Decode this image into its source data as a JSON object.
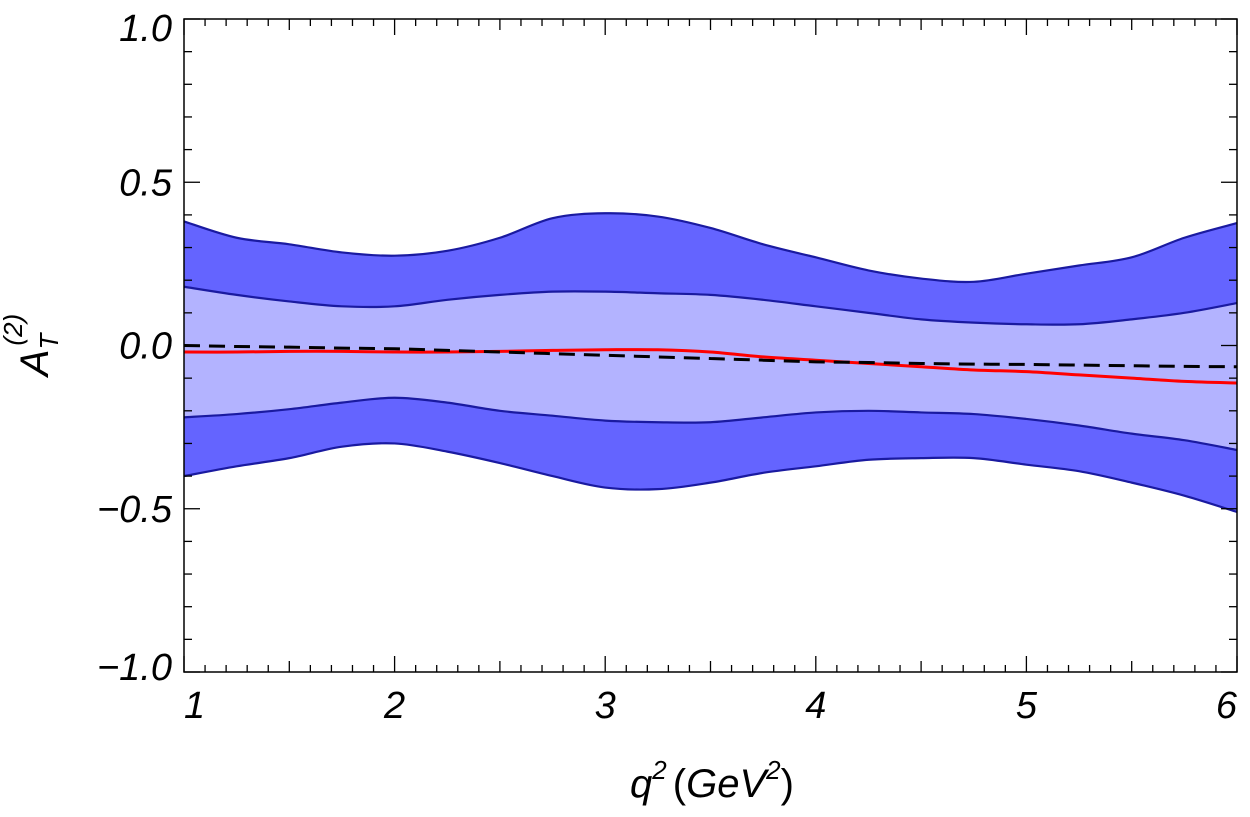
{
  "chart_data": {
    "type": "area",
    "title": "",
    "xlabel": {
      "base": "q",
      "sup": "2",
      "unit_open": "(",
      "unit_base": "GeV",
      "unit_sup": "2",
      "unit_close": ")"
    },
    "ylabel": {
      "base": "A",
      "sub": "T",
      "sup": "(2)"
    },
    "xlim": [
      1,
      6
    ],
    "ylim": [
      -1.0,
      1.0
    ],
    "xticks": [
      1,
      2,
      3,
      4,
      5,
      6
    ],
    "xtick_labels": [
      "1",
      "2",
      "3",
      "4",
      "5",
      "6"
    ],
    "yticks": [
      1.0,
      0.5,
      0.0,
      -0.5,
      -1.0
    ],
    "ytick_labels": [
      "1.0",
      "0.5",
      "0.0",
      "−0.5",
      "−1.0"
    ],
    "grid": false,
    "x": [
      1.0,
      1.25,
      1.5,
      1.75,
      2.0,
      2.25,
      2.5,
      2.75,
      3.0,
      3.25,
      3.5,
      3.75,
      4.0,
      4.25,
      4.5,
      4.75,
      5.0,
      5.25,
      5.5,
      5.75,
      6.0
    ],
    "series": [
      {
        "name": "outer band",
        "kind": "band",
        "color": "#6464ff",
        "edge_color": "#1a1aa0",
        "upper": [
          0.38,
          0.33,
          0.31,
          0.285,
          0.275,
          0.29,
          0.33,
          0.39,
          0.405,
          0.395,
          0.36,
          0.31,
          0.27,
          0.23,
          0.205,
          0.195,
          0.22,
          0.245,
          0.27,
          0.33,
          0.375
        ],
        "lower": [
          -0.4,
          -0.37,
          -0.345,
          -0.31,
          -0.3,
          -0.325,
          -0.36,
          -0.4,
          -0.435,
          -0.44,
          -0.42,
          -0.39,
          -0.37,
          -0.35,
          -0.345,
          -0.345,
          -0.365,
          -0.385,
          -0.42,
          -0.46,
          -0.51
        ]
      },
      {
        "name": "inner band",
        "kind": "band",
        "color": "#b3b3ff",
        "edge_color": "#1a1aa0",
        "upper": [
          0.18,
          0.155,
          0.135,
          0.12,
          0.12,
          0.14,
          0.155,
          0.165,
          0.165,
          0.16,
          0.155,
          0.14,
          0.12,
          0.1,
          0.08,
          0.07,
          0.065,
          0.065,
          0.08,
          0.1,
          0.13
        ],
        "lower": [
          -0.22,
          -0.21,
          -0.195,
          -0.175,
          -0.16,
          -0.175,
          -0.2,
          -0.215,
          -0.23,
          -0.235,
          -0.235,
          -0.22,
          -0.205,
          -0.2,
          -0.205,
          -0.21,
          -0.225,
          -0.245,
          -0.27,
          -0.29,
          -0.32
        ]
      },
      {
        "name": "central (solid)",
        "kind": "line",
        "color": "#ff0000",
        "dash": "solid",
        "values": [
          -0.02,
          -0.02,
          -0.018,
          -0.018,
          -0.02,
          -0.02,
          -0.018,
          -0.015,
          -0.013,
          -0.013,
          -0.02,
          -0.035,
          -0.045,
          -0.055,
          -0.065,
          -0.075,
          -0.08,
          -0.09,
          -0.1,
          -0.11,
          -0.115
        ]
      },
      {
        "name": "central (dashed)",
        "kind": "line",
        "color": "#000000",
        "dash": "dashed",
        "values": [
          0.0,
          -0.003,
          -0.005,
          -0.008,
          -0.01,
          -0.015,
          -0.02,
          -0.025,
          -0.03,
          -0.035,
          -0.04,
          -0.045,
          -0.05,
          -0.052,
          -0.055,
          -0.057,
          -0.058,
          -0.06,
          -0.062,
          -0.064,
          -0.065
        ]
      }
    ]
  }
}
